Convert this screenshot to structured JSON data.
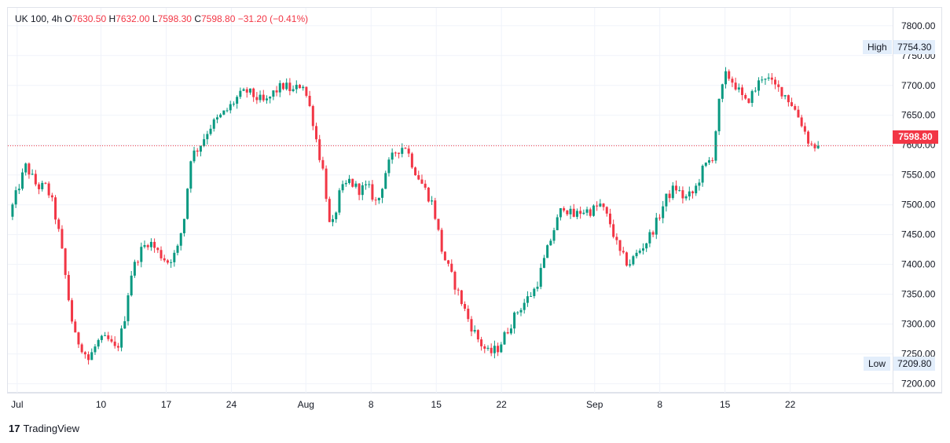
{
  "legend": {
    "symbol": "UK 100",
    "interval": "4h",
    "open_label": "O",
    "open": "7630.50",
    "high_label": "H",
    "high": "7632.00",
    "low_label": "L",
    "low": "7598.30",
    "close_label": "C",
    "close": "7598.80",
    "change": "−31.20 (−0.41%)"
  },
  "markers": {
    "high_label": "High",
    "high_value": "7754.30",
    "low_label": "Low",
    "low_value": "7209.80",
    "last_price": "7598.80"
  },
  "brand": {
    "logo": "17",
    "name": "TradingView"
  },
  "colors": {
    "up": "#089981",
    "down": "#f23645",
    "grid": "#f0f3fa",
    "marker_bg": "#e3eefb"
  },
  "chart_data": {
    "type": "candlestick",
    "title": "UK 100, 4h",
    "y_ticks": [
      "7800.00",
      "7750.00",
      "7700.00",
      "7650.00",
      "7600.00",
      "7550.00",
      "7500.00",
      "7450.00",
      "7400.00",
      "7350.00",
      "7300.00",
      "7250.00",
      "7200.00"
    ],
    "ylim": [
      7185,
      7830
    ],
    "x_tick_labels": [
      "Jul",
      "10",
      "17",
      "24",
      "Aug",
      "8",
      "15",
      "22",
      "Sep",
      "8",
      "15",
      "22"
    ],
    "x_tick_days": [
      1,
      10,
      17,
      24,
      32,
      39,
      46,
      53,
      63,
      70,
      77,
      84
    ],
    "x_day_range": [
      0,
      95
    ],
    "anchor_series": {
      "note_days": "day 1 = Jul 1",
      "points": [
        [
          0.5,
          7480
        ],
        [
          1.5,
          7530
        ],
        [
          2.3,
          7565
        ],
        [
          3.5,
          7530
        ],
        [
          4.5,
          7530
        ],
        [
          5.2,
          7500
        ],
        [
          6.0,
          7440
        ],
        [
          6.8,
          7350
        ],
        [
          7.5,
          7280
        ],
        [
          8.2,
          7265
        ],
        [
          9.0,
          7240
        ],
        [
          10.0,
          7270
        ],
        [
          11.0,
          7275
        ],
        [
          12.0,
          7255
        ],
        [
          12.8,
          7300
        ],
        [
          13.5,
          7380
        ],
        [
          14.5,
          7420
        ],
        [
          15.5,
          7440
        ],
        [
          16.5,
          7420
        ],
        [
          17.5,
          7405
        ],
        [
          18.5,
          7420
        ],
        [
          19.3,
          7480
        ],
        [
          20.0,
          7580
        ],
        [
          21.0,
          7600
        ],
        [
          22.0,
          7630
        ],
        [
          23.0,
          7645
        ],
        [
          24.0,
          7660
        ],
        [
          25.0,
          7680
        ],
        [
          26.0,
          7690
        ],
        [
          27.0,
          7680
        ],
        [
          28.0,
          7670
        ],
        [
          29.0,
          7690
        ],
        [
          30.0,
          7700
        ],
        [
          31.0,
          7690
        ],
        [
          32.0,
          7705
        ],
        [
          33.0,
          7650
        ],
        [
          33.7,
          7590
        ],
        [
          34.3,
          7550
        ],
        [
          35.0,
          7450
        ],
        [
          36.0,
          7520
        ],
        [
          37.0,
          7540
        ],
        [
          38.0,
          7525
        ],
        [
          39.0,
          7530
        ],
        [
          40.0,
          7500
        ],
        [
          41.0,
          7560
        ],
        [
          42.0,
          7590
        ],
        [
          43.0,
          7600
        ],
        [
          44.0,
          7560
        ],
        [
          45.0,
          7530
        ],
        [
          46.0,
          7500
        ],
        [
          47.0,
          7420
        ],
        [
          48.0,
          7380
        ],
        [
          49.0,
          7340
        ],
        [
          50.0,
          7300
        ],
        [
          51.0,
          7270
        ],
        [
          52.0,
          7250
        ],
        [
          53.0,
          7260
        ],
        [
          54.0,
          7290
        ],
        [
          55.0,
          7320
        ],
        [
          56.0,
          7340
        ],
        [
          57.0,
          7360
        ],
        [
          58.0,
          7410
        ],
        [
          59.0,
          7460
        ],
        [
          60.0,
          7500
        ],
        [
          61.0,
          7480
        ],
        [
          62.0,
          7490
        ],
        [
          63.0,
          7490
        ],
        [
          64.0,
          7500
        ],
        [
          65.0,
          7470
        ],
        [
          66.0,
          7420
        ],
        [
          67.0,
          7400
        ],
        [
          68.0,
          7420
        ],
        [
          69.0,
          7440
        ],
        [
          70.0,
          7470
        ],
        [
          71.0,
          7510
        ],
        [
          72.0,
          7530
        ],
        [
          73.0,
          7510
        ],
        [
          74.0,
          7520
        ],
        [
          75.0,
          7560
        ],
        [
          76.0,
          7580
        ],
        [
          76.8,
          7680
        ],
        [
          77.5,
          7720
        ],
        [
          78.5,
          7700
        ],
        [
          79.5,
          7670
        ],
        [
          80.5,
          7690
        ],
        [
          81.5,
          7720
        ],
        [
          82.5,
          7700
        ],
        [
          83.5,
          7690
        ],
        [
          84.5,
          7670
        ],
        [
          85.5,
          7640
        ],
        [
          86.5,
          7600
        ],
        [
          87.0,
          7598.8
        ]
      ]
    }
  }
}
